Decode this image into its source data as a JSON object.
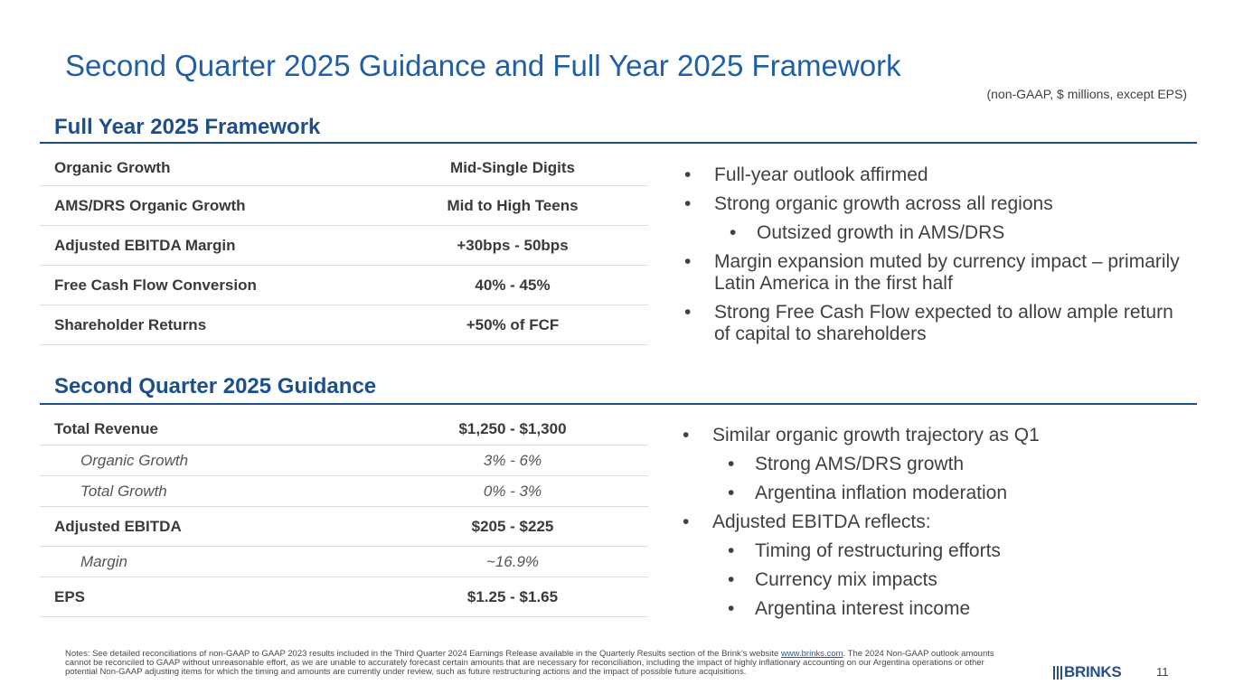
{
  "title": "Second Quarter 2025 Guidance and Full Year 2025 Framework",
  "subnote": "(non-GAAP, $ millions, except EPS)",
  "framework": {
    "heading": "Full Year 2025 Framework",
    "rows": [
      {
        "label": "Organic Growth",
        "value": "Mid-Single Digits"
      },
      {
        "label": "AMS/DRS Organic Growth",
        "value": "Mid to High Teens"
      },
      {
        "label": "Adjusted EBITDA Margin",
        "value": "+30bps - 50bps"
      },
      {
        "label": "Free Cash Flow Conversion",
        "value": "40% - 45%"
      },
      {
        "label": "Shareholder Returns",
        "value": "+50% of FCF"
      }
    ],
    "bullets": [
      "Full-year outlook affirmed",
      "Strong organic growth across all regions",
      "Outsized growth in AMS/DRS",
      "Margin expansion muted by currency impact – primarily Latin America in the first half",
      "Strong Free Cash Flow expected to allow ample return of capital to shareholders"
    ]
  },
  "guidance": {
    "heading": "Second Quarter 2025 Guidance",
    "rows": [
      {
        "label": "Total Revenue",
        "value": "$1,250 - $1,300"
      },
      {
        "label": "Organic Growth",
        "value": "3% - 6%"
      },
      {
        "label": "Total Growth",
        "value": "0% - 3%"
      },
      {
        "label": "Adjusted EBITDA",
        "value": "$205 - $225"
      },
      {
        "label": "Margin",
        "value": "~16.9%"
      },
      {
        "label": "EPS",
        "value": "$1.25 - $1.65"
      }
    ],
    "bullets": [
      "Similar organic growth trajectory as Q1",
      "Strong AMS/DRS growth",
      "Argentina inflation moderation",
      "Adjusted EBITDA reflects:",
      "Timing of restructuring efforts",
      "Currency mix impacts",
      "Argentina interest income"
    ]
  },
  "notes": {
    "before_link": "Notes: See detailed reconciliations of non-GAAP to GAAP 2023 results included in the Third Quarter 2024 Earnings Release available in the Quarterly Results section of the Brink’s website ",
    "link": "www.brinks.com",
    "after_link": ". The 2024 Non-GAAP outlook amounts cannot be reconciled to GAAP without unreasonable effort, as we are unable to accurately forecast certain amounts that are necessary for reconciliation, including the impact of highly inflationary accounting on our Argentina operations or other potential Non-GAAP adjusting items for which the timing and amounts are currently under review, such as future restructuring actions and the impact of possible future acquisitions."
  },
  "logo_text": "BRINKS",
  "page_number": "11"
}
